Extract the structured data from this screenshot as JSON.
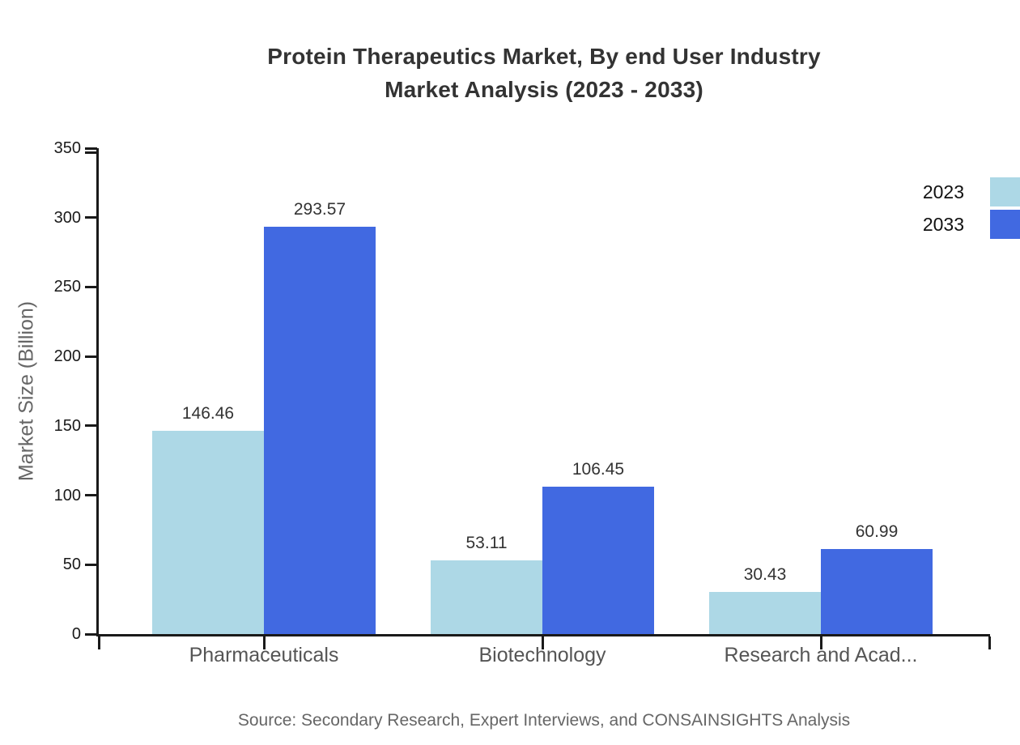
{
  "title": {
    "line1": "Protein Therapeutics Market, By end User Industry",
    "line2": "Market Analysis (2023 - 2033)"
  },
  "source": "Source: Secondary Research, Expert Interviews, and CONSAINSIGHTS Analysis",
  "colors": {
    "series_2023": "#ADD8E6",
    "series_2033": "#4169E1",
    "axis": "#1a1a1a",
    "title_text": "#333333",
    "muted_text": "#666666"
  },
  "chart_data": {
    "type": "bar",
    "title": "Protein Therapeutics Market, By end User Industry Market Analysis (2023 - 2033)",
    "categories": [
      "Pharmaceuticals",
      "Biotechnology",
      "Research and Acad..."
    ],
    "series": [
      {
        "name": "2023",
        "color": "#ADD8E6",
        "values": [
          146.46,
          53.11,
          30.43
        ]
      },
      {
        "name": "2033",
        "color": "#4169E1",
        "values": [
          293.57,
          106.45,
          60.99
        ]
      }
    ],
    "xlabel": "",
    "ylabel": "Market Size (Billion)",
    "ylim": [
      0,
      350
    ],
    "ytick_step": 50,
    "grid": false,
    "legend_position": "top-right",
    "value_labels": true
  }
}
